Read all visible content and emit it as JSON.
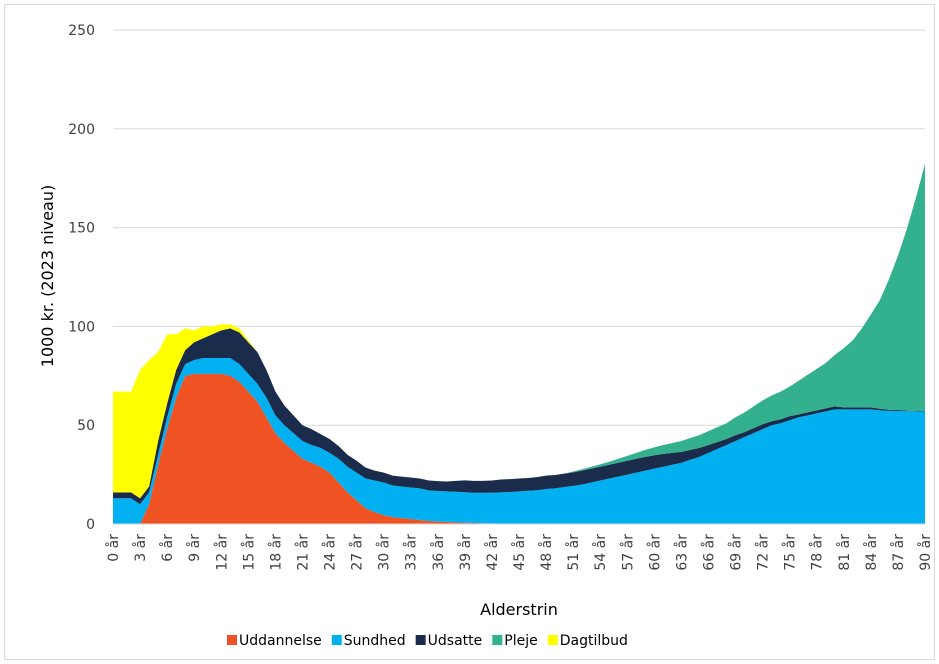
{
  "chart_data": {
    "type": "area",
    "stacked": true,
    "xlabel": "Alderstrin",
    "ylabel": "1000 kr. (2023 niveau)",
    "ylim": [
      0,
      250
    ],
    "yticks": [
      0,
      50,
      100,
      150,
      200,
      250
    ],
    "grid": "horizontal",
    "legend": "bottom",
    "x": [
      0,
      1,
      2,
      3,
      4,
      5,
      6,
      7,
      8,
      9,
      10,
      11,
      12,
      13,
      14,
      15,
      16,
      17,
      18,
      19,
      20,
      21,
      22,
      23,
      24,
      25,
      26,
      27,
      28,
      29,
      30,
      31,
      32,
      33,
      34,
      35,
      36,
      37,
      38,
      39,
      40,
      41,
      42,
      43,
      44,
      45,
      46,
      47,
      48,
      49,
      50,
      51,
      52,
      53,
      54,
      55,
      56,
      57,
      58,
      59,
      60,
      61,
      62,
      63,
      64,
      65,
      66,
      67,
      68,
      69,
      70,
      71,
      72,
      73,
      74,
      75,
      76,
      77,
      78,
      79,
      80,
      81,
      82,
      83,
      84,
      85,
      86,
      87,
      88,
      89,
      90
    ],
    "xtick_labels": [
      "0 år",
      "3 år",
      "6 år",
      "9 år",
      "12 år",
      "15 år",
      "18 år",
      "21 år",
      "24 år",
      "27 år",
      "30 år",
      "33 år",
      "36 år",
      "39 år",
      "42 år",
      "45 år",
      "48 år",
      "51 år",
      "54 år",
      "57 år",
      "60 år",
      "63 år",
      "66 år",
      "69 år",
      "72 år",
      "75 år",
      "78 år",
      "81 år",
      "84 år",
      "87 år",
      "90 år"
    ],
    "series": [
      {
        "name": "Uddannelse",
        "color": "#F05323",
        "values": [
          0,
          0,
          0,
          0,
          10,
          30,
          48,
          64,
          75,
          76,
          76,
          76,
          76,
          75,
          72,
          67,
          62,
          54,
          46,
          41,
          37,
          33,
          31,
          29,
          26,
          21,
          16,
          12,
          8,
          6,
          4.5,
          3.5,
          3,
          2.5,
          2,
          1.5,
          1.2,
          1,
          0.8,
          0.6,
          0.5,
          0.4,
          0.3,
          0.2,
          0.2,
          0.1,
          0.1,
          0.1,
          0.1,
          0,
          0,
          0,
          0,
          0,
          0,
          0,
          0,
          0,
          0,
          0,
          0,
          0,
          0,
          0,
          0,
          0,
          0,
          0,
          0,
          0,
          0,
          0,
          0,
          0,
          0,
          0,
          0,
          0,
          0,
          0,
          0,
          0,
          0,
          0,
          0,
          0,
          0,
          0,
          0,
          0,
          0
        ]
      },
      {
        "name": "Sundhed",
        "color": "#00B0F0",
        "values": [
          13,
          13,
          13,
          10,
          6,
          5,
          6,
          7,
          6,
          7,
          8,
          8,
          8,
          9,
          9,
          9,
          9,
          10,
          9,
          9,
          9,
          9,
          9,
          9.5,
          10,
          12,
          13,
          14,
          15,
          16,
          16.5,
          16,
          16,
          16,
          16,
          15.5,
          15.5,
          15.5,
          15.5,
          15.5,
          15.3,
          15.4,
          15.5,
          15.8,
          16,
          16.4,
          16.7,
          17,
          17.6,
          18,
          18.7,
          19.3,
          20,
          21,
          22,
          23,
          24,
          25,
          26,
          27,
          28,
          29,
          30,
          31,
          32.5,
          34,
          36,
          38,
          40,
          42,
          44,
          46,
          48,
          50,
          51,
          52.5,
          54,
          55,
          56,
          57,
          58,
          58,
          58,
          58,
          58,
          57.5,
          57.3,
          57.2,
          57.1,
          57,
          57
        ]
      },
      {
        "name": "Udsatte",
        "color": "#1A2B4C",
        "values": [
          3,
          3,
          3,
          3,
          3,
          7,
          7,
          7,
          7,
          9,
          10,
          12,
          14,
          15,
          16,
          16,
          16,
          14,
          12,
          10,
          9,
          8,
          8,
          7,
          7,
          6.5,
          6,
          6,
          5.5,
          5,
          5,
          5,
          5,
          5,
          5,
          5,
          5,
          5,
          5.5,
          6,
          6,
          6,
          6.2,
          6.5,
          6.5,
          6.5,
          6.5,
          6.6,
          6.8,
          6.8,
          6.8,
          6.8,
          7,
          7,
          7,
          7,
          7,
          7,
          7,
          7,
          6.8,
          6.5,
          6,
          5.5,
          5,
          4.5,
          4,
          3.5,
          3,
          3,
          2.5,
          2.5,
          2.5,
          2,
          2,
          2,
          1.5,
          1.5,
          1.5,
          1.5,
          1.5,
          1,
          1,
          1,
          1,
          0.8,
          0.5,
          0.5,
          0.3,
          0.2,
          0.2
        ]
      },
      {
        "name": "Pleje",
        "color": "#33B08D",
        "values": [
          0,
          0,
          0,
          0,
          0,
          0,
          0,
          0,
          0,
          0,
          0,
          0,
          0,
          0,
          0,
          0,
          0,
          0,
          0,
          0,
          0,
          0,
          0,
          0,
          0,
          0,
          0,
          0,
          0,
          0,
          0,
          0,
          0,
          0,
          0,
          0,
          0,
          0,
          0,
          0,
          0,
          0,
          0,
          0,
          0,
          0,
          0,
          0,
          0,
          0,
          0,
          0.5,
          0.7,
          1,
          1.2,
          1.5,
          2,
          2.5,
          3,
          3.5,
          4,
          4.5,
          5,
          5.5,
          6,
          6.5,
          7,
          7.5,
          8,
          9,
          10,
          11,
          12,
          13,
          14,
          15,
          17,
          19,
          21,
          23,
          26,
          30,
          34,
          40,
          47,
          55,
          66,
          78,
          92,
          108,
          125
        ]
      },
      {
        "name": "Dagtilbud",
        "color": "#FFFF00",
        "values": [
          51,
          51,
          51,
          65,
          64,
          45,
          35,
          18,
          11,
          6,
          6,
          4,
          3,
          2,
          2,
          1,
          0,
          0,
          0,
          0,
          0,
          0,
          0,
          0,
          0,
          0,
          0,
          0,
          0,
          0,
          0,
          0,
          0,
          0,
          0,
          0,
          0,
          0,
          0,
          0,
          0,
          0,
          0,
          0,
          0,
          0,
          0,
          0,
          0,
          0,
          0,
          0,
          0,
          0,
          0,
          0,
          0,
          0,
          0,
          0,
          0,
          0,
          0,
          0,
          0,
          0,
          0,
          0,
          0,
          0,
          0,
          0,
          0,
          0,
          0,
          0,
          0,
          0,
          0,
          0,
          0,
          0,
          0,
          0,
          0,
          0,
          0,
          0,
          0,
          0,
          0
        ]
      }
    ]
  }
}
